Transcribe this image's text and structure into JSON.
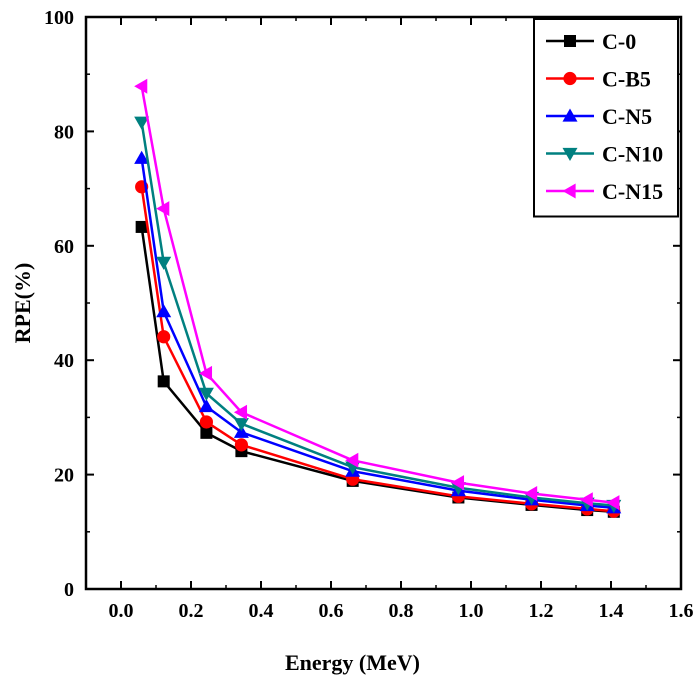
{
  "chart_data": {
    "type": "line",
    "title": "",
    "xlabel": "Energy (MeV)",
    "ylabel": "RPE(%)",
    "xlim": [
      -0.1,
      1.6
    ],
    "ylim": [
      0,
      100
    ],
    "xticks": [
      0.0,
      0.2,
      0.4,
      0.6,
      0.8,
      1.0,
      1.2,
      1.4,
      1.6
    ],
    "xtick_labels": [
      "0.0",
      "0.2",
      "0.4",
      "0.6",
      "0.8",
      "1.0",
      "1.2",
      "1.4",
      "1.6"
    ],
    "yticks": [
      0,
      20,
      40,
      60,
      80,
      100
    ],
    "ytick_labels": [
      "0",
      "20",
      "40",
      "60",
      "80",
      "100"
    ],
    "grid": false,
    "legend_position": "top-right",
    "x": [
      0.059,
      0.122,
      0.244,
      0.344,
      0.662,
      0.964,
      1.173,
      1.332,
      1.408
    ],
    "series": [
      {
        "name": "C-0",
        "color": "#000000",
        "marker": "square",
        "values": [
          63.3,
          36.3,
          27.3,
          24.1,
          18.9,
          16.0,
          14.7,
          13.8,
          13.5
        ]
      },
      {
        "name": "C-B5",
        "color": "#ff0000",
        "marker": "circle",
        "values": [
          70.3,
          44.1,
          29.2,
          25.2,
          19.2,
          16.2,
          14.9,
          14.0,
          13.6
        ]
      },
      {
        "name": "C-N5",
        "color": "#0000ff",
        "marker": "triangle-up",
        "values": [
          75.3,
          48.5,
          31.9,
          27.4,
          20.6,
          17.2,
          15.6,
          14.6,
          14.2
        ]
      },
      {
        "name": "C-N10",
        "color": "#008080",
        "marker": "triangle-down",
        "values": [
          81.6,
          57.1,
          34.2,
          28.9,
          21.3,
          17.7,
          16.0,
          15.0,
          14.6
        ]
      },
      {
        "name": "C-N15",
        "color": "#ff00ff",
        "marker": "triangle-left",
        "values": [
          87.9,
          66.5,
          37.7,
          30.9,
          22.5,
          18.6,
          16.7,
          15.6,
          15.1
        ]
      }
    ]
  }
}
